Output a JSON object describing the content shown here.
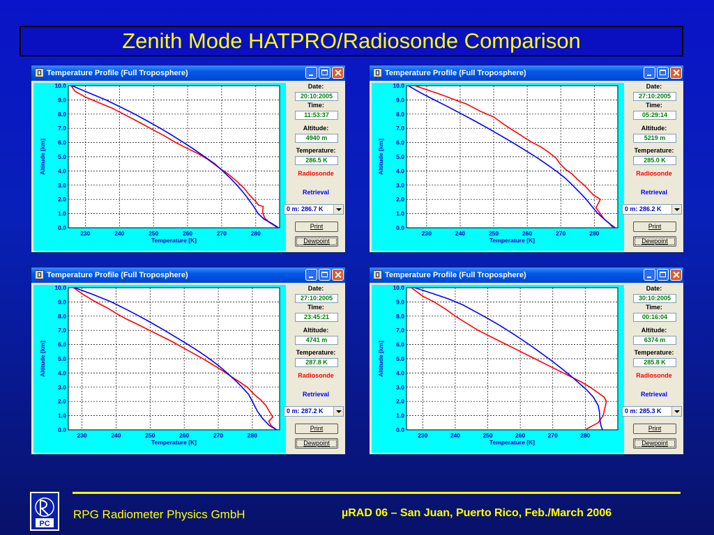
{
  "slide": {
    "title": "Zenith Mode HATPRO/Radiosonde Comparison",
    "footer_left": "RPG Radiometer Physics GmbH",
    "footer_right": "µRAD 06  – San Juan, Puerto Rico,  Feb./March  2006"
  },
  "colors": {
    "radiosonde": "#ff0000",
    "retrieval": "#0000ff",
    "plot_bg": "#00ffff",
    "plot_inner": "#ffffff",
    "title_text": "#ffff00"
  },
  "labels": {
    "date": "Date:",
    "time": "Time:",
    "altitude": "Altitude:",
    "temperature": "Temperature:",
    "radiosonde": "Radiosonde",
    "retrieval": "Retrieval",
    "print": "Print",
    "dewpoint": "Dewpoint"
  },
  "windows": [
    {
      "title": "Temperature Profile (Full Troposphere)",
      "date": "20:10:2005",
      "time": "11:53:37",
      "altitude": "4940 m",
      "temperature": "286.5 K",
      "selector": "0 m: 286.7 K"
    },
    {
      "title": "Temperature Profile (Full Troposphere)",
      "date": "27:10:2005",
      "time": "05:29:14",
      "altitude": "5219 m",
      "temperature": "285.0 K",
      "selector": "0 m: 286.2 K"
    },
    {
      "title": "Temperature Profile (Full Troposphere)",
      "date": "27:10:2005",
      "time": "23:45:21",
      "altitude": "4741 m",
      "temperature": "287.8 K",
      "selector": "0 m: 287.2 K"
    },
    {
      "title": "Temperature Profile (Full Troposphere)",
      "date": "30:10:2005",
      "time": "00:16:04",
      "altitude": "6374 m",
      "temperature": "285.8 K",
      "selector": "0 m: 285.3 K"
    }
  ],
  "chart_data": [
    {
      "type": "line",
      "xlabel": "Temperature [K]",
      "ylabel": "Altitude [km]",
      "xlim": [
        225,
        287
      ],
      "ylim": [
        0,
        10
      ],
      "xticks": [
        230,
        240,
        250,
        260,
        270,
        280
      ],
      "yticks": [
        "0.0",
        "1.0",
        "2.0",
        "3.0",
        "4.0",
        "5.0",
        "6.0",
        "7.0",
        "8.0",
        "9.0",
        "10.0"
      ],
      "grid": true,
      "series": [
        {
          "name": "Radiosonde",
          "points": [
            [
              286.3,
              0.0
            ],
            [
              285.2,
              0.2
            ],
            [
              283.8,
              0.4
            ],
            [
              282.6,
              0.7
            ],
            [
              282.0,
              1.1
            ],
            [
              282.2,
              1.5
            ],
            [
              280.8,
              1.6
            ],
            [
              279.8,
              1.9
            ],
            [
              278.2,
              2.3
            ],
            [
              276.5,
              2.8
            ],
            [
              274.3,
              3.3
            ],
            [
              271.8,
              3.8
            ],
            [
              268.8,
              4.3
            ],
            [
              266.0,
              4.8
            ],
            [
              263.2,
              5.2
            ],
            [
              259.8,
              5.6
            ],
            [
              256.5,
              6.0
            ],
            [
              253.0,
              6.5
            ],
            [
              249.8,
              6.9
            ],
            [
              246.0,
              7.4
            ],
            [
              242.0,
              7.9
            ],
            [
              238.0,
              8.4
            ],
            [
              234.0,
              8.8
            ],
            [
              230.0,
              9.2
            ],
            [
              227.0,
              9.6
            ],
            [
              225.8,
              10.0
            ]
          ]
        },
        {
          "name": "Retrieval",
          "points": [
            [
              286.7,
              0.0
            ],
            [
              284.8,
              0.3
            ],
            [
              282.5,
              0.6
            ],
            [
              280.7,
              1.0
            ],
            [
              279.4,
              1.5
            ],
            [
              277.9,
              2.0
            ],
            [
              276.3,
              2.5
            ],
            [
              274.5,
              3.0
            ],
            [
              272.5,
              3.5
            ],
            [
              270.3,
              4.0
            ],
            [
              268.0,
              4.5
            ],
            [
              265.0,
              5.0
            ],
            [
              262.0,
              5.5
            ],
            [
              258.8,
              6.0
            ],
            [
              255.5,
              6.5
            ],
            [
              252.0,
              7.0
            ],
            [
              248.3,
              7.5
            ],
            [
              244.5,
              8.0
            ],
            [
              240.3,
              8.5
            ],
            [
              236.0,
              9.0
            ],
            [
              231.0,
              9.5
            ],
            [
              226.0,
              10.0
            ]
          ]
        }
      ]
    },
    {
      "type": "line",
      "xlabel": "Temperature [K]",
      "ylabel": "Altitude [km]",
      "xlim": [
        224,
        287
      ],
      "ylim": [
        0,
        10
      ],
      "xticks": [
        230,
        240,
        250,
        260,
        270,
        280
      ],
      "yticks": [
        "0.0",
        "1.0",
        "2.0",
        "3.0",
        "4.0",
        "5.0",
        "6.0",
        "7.0",
        "8.0",
        "9.0",
        "10.0"
      ],
      "grid": true,
      "series": [
        {
          "name": "Radiosonde",
          "points": [
            [
              285.6,
              0.0
            ],
            [
              284.5,
              0.3
            ],
            [
              283.0,
              0.6
            ],
            [
              281.8,
              1.0
            ],
            [
              280.5,
              1.4
            ],
            [
              281.8,
              2.0
            ],
            [
              279.8,
              2.3
            ],
            [
              278.6,
              2.6
            ],
            [
              277.0,
              3.0
            ],
            [
              275.0,
              3.4
            ],
            [
              273.3,
              3.8
            ],
            [
              271.5,
              4.1
            ],
            [
              269.8,
              4.5
            ],
            [
              268.6,
              4.9
            ],
            [
              266.5,
              5.3
            ],
            [
              264.0,
              5.7
            ],
            [
              261.5,
              6.0
            ],
            [
              258.8,
              6.4
            ],
            [
              256.2,
              6.8
            ],
            [
              253.5,
              7.2
            ],
            [
              250.0,
              7.8
            ],
            [
              246.0,
              8.2
            ],
            [
              242.0,
              8.7
            ],
            [
              238.5,
              9.0
            ],
            [
              234.0,
              9.4
            ],
            [
              229.0,
              9.8
            ],
            [
              226.5,
              10.0
            ]
          ]
        },
        {
          "name": "Retrieval",
          "points": [
            [
              286.2,
              0.0
            ],
            [
              284.5,
              0.3
            ],
            [
              282.5,
              0.7
            ],
            [
              280.7,
              1.1
            ],
            [
              279.3,
              1.5
            ],
            [
              277.6,
              2.0
            ],
            [
              275.6,
              2.5
            ],
            [
              273.5,
              3.0
            ],
            [
              271.3,
              3.5
            ],
            [
              268.6,
              4.0
            ],
            [
              265.6,
              4.5
            ],
            [
              262.5,
              5.0
            ],
            [
              259.1,
              5.5
            ],
            [
              255.6,
              6.0
            ],
            [
              252.0,
              6.5
            ],
            [
              248.3,
              7.0
            ],
            [
              244.5,
              7.5
            ],
            [
              240.5,
              8.0
            ],
            [
              236.5,
              8.5
            ],
            [
              232.3,
              9.0
            ],
            [
              228.2,
              9.5
            ],
            [
              224.5,
              10.0
            ]
          ]
        }
      ]
    },
    {
      "type": "line",
      "xlabel": "Temperature [K]",
      "ylabel": "Altitude [km]",
      "xlim": [
        226,
        288
      ],
      "ylim": [
        0,
        10
      ],
      "xticks": [
        230,
        240,
        250,
        260,
        270,
        280
      ],
      "yticks": [
        "0.0",
        "1.0",
        "2.0",
        "3.0",
        "4.0",
        "5.0",
        "6.0",
        "7.0",
        "8.0",
        "9.0",
        "10.0"
      ],
      "grid": true,
      "series": [
        {
          "name": "Radiosonde",
          "points": [
            [
              287.0,
              0.0
            ],
            [
              285.5,
              0.3
            ],
            [
              284.8,
              0.6
            ],
            [
              286.0,
              0.9
            ],
            [
              285.0,
              1.3
            ],
            [
              284.0,
              1.7
            ],
            [
              282.5,
              2.1
            ],
            [
              280.5,
              2.5
            ],
            [
              278.5,
              3.0
            ],
            [
              276.0,
              3.4
            ],
            [
              273.5,
              3.8
            ],
            [
              271.0,
              4.2
            ],
            [
              268.3,
              4.6
            ],
            [
              265.5,
              5.0
            ],
            [
              262.5,
              5.4
            ],
            [
              259.5,
              5.8
            ],
            [
              256.5,
              6.2
            ],
            [
              253.2,
              6.6
            ],
            [
              249.8,
              7.0
            ],
            [
              246.5,
              7.4
            ],
            [
              243.0,
              7.8
            ],
            [
              240.0,
              8.2
            ],
            [
              237.3,
              8.6
            ],
            [
              234.0,
              9.0
            ],
            [
              230.5,
              9.5
            ],
            [
              227.5,
              10.0
            ]
          ]
        },
        {
          "name": "Retrieval",
          "points": [
            [
              287.2,
              0.0
            ],
            [
              285.0,
              0.3
            ],
            [
              283.0,
              0.8
            ],
            [
              281.5,
              1.3
            ],
            [
              280.2,
              1.9
            ],
            [
              278.9,
              2.5
            ],
            [
              277.0,
              3.0
            ],
            [
              274.9,
              3.5
            ],
            [
              272.6,
              4.0
            ],
            [
              270.2,
              4.5
            ],
            [
              267.4,
              5.0
            ],
            [
              264.4,
              5.5
            ],
            [
              261.1,
              6.0
            ],
            [
              257.7,
              6.5
            ],
            [
              254.2,
              7.0
            ],
            [
              250.6,
              7.5
            ],
            [
              246.8,
              8.0
            ],
            [
              242.8,
              8.5
            ],
            [
              238.6,
              9.0
            ],
            [
              233.5,
              9.5
            ],
            [
              227.8,
              10.0
            ]
          ]
        }
      ]
    },
    {
      "type": "line",
      "xlabel": "Temperature [K]",
      "ylabel": "Altitude [km]",
      "xlim": [
        225,
        290
      ],
      "ylim": [
        0,
        10
      ],
      "xticks": [
        230,
        240,
        250,
        260,
        270,
        280
      ],
      "yticks": [
        "0.0",
        "1.0",
        "2.0",
        "3.0",
        "4.0",
        "5.0",
        "6.0",
        "7.0",
        "8.0",
        "9.0",
        "10.0"
      ],
      "grid": true,
      "series": [
        {
          "name": "Radiosonde",
          "points": [
            [
              280.0,
              0.0
            ],
            [
              281.5,
              0.2
            ],
            [
              284.0,
              0.5
            ],
            [
              285.5,
              1.0
            ],
            [
              286.0,
              1.5
            ],
            [
              286.5,
              2.0
            ],
            [
              285.8,
              2.3
            ],
            [
              284.0,
              2.6
            ],
            [
              281.5,
              3.0
            ],
            [
              278.5,
              3.4
            ],
            [
              275.0,
              3.8
            ],
            [
              271.5,
              4.2
            ],
            [
              268.0,
              4.6
            ],
            [
              264.5,
              5.0
            ],
            [
              261.0,
              5.4
            ],
            [
              257.5,
              5.8
            ],
            [
              254.0,
              6.2
            ],
            [
              250.5,
              6.6
            ],
            [
              247.0,
              7.0
            ],
            [
              243.5,
              7.5
            ],
            [
              240.0,
              8.0
            ],
            [
              237.0,
              8.5
            ],
            [
              233.5,
              9.0
            ],
            [
              230.0,
              9.4
            ],
            [
              226.5,
              10.0
            ]
          ]
        },
        {
          "name": "Retrieval",
          "points": [
            [
              285.3,
              0.0
            ],
            [
              284.8,
              0.3
            ],
            [
              284.5,
              0.7
            ],
            [
              284.4,
              1.2
            ],
            [
              284.0,
              1.7
            ],
            [
              282.5,
              2.3
            ],
            [
              280.5,
              2.8
            ],
            [
              278.0,
              3.3
            ],
            [
              275.5,
              3.8
            ],
            [
              272.8,
              4.3
            ],
            [
              270.0,
              4.8
            ],
            [
              267.0,
              5.3
            ],
            [
              264.0,
              5.8
            ],
            [
              260.8,
              6.3
            ],
            [
              257.5,
              6.8
            ],
            [
              254.0,
              7.3
            ],
            [
              250.3,
              7.8
            ],
            [
              246.3,
              8.3
            ],
            [
              242.3,
              8.8
            ],
            [
              238.0,
              9.2
            ],
            [
              233.0,
              9.6
            ],
            [
              227.5,
              10.0
            ]
          ]
        }
      ]
    }
  ]
}
